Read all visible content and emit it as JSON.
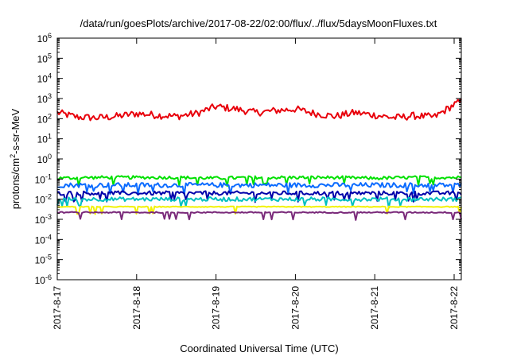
{
  "chart_data": {
    "type": "line",
    "title": "/data/run/goesPlots/archive/2017-08-22/02:00/flux/../flux/5daysMoonFluxes.txt",
    "xlabel": "Coordinated Universal Time (UTC)",
    "ylabel": "protons/cm²-s-sr-MeV",
    "ylabel_parts": {
      "before": "protons/cm",
      "sup": "2",
      "after": "-s-sr-MeV"
    },
    "yscale": "log",
    "ylim_exp": [
      -6,
      6
    ],
    "y_ticks": [
      {
        "base": "10",
        "exp": "6"
      },
      {
        "base": "10",
        "exp": "5"
      },
      {
        "base": "10",
        "exp": "4"
      },
      {
        "base": "10",
        "exp": "3"
      },
      {
        "base": "10",
        "exp": "2"
      },
      {
        "base": "10",
        "exp": "1"
      },
      {
        "base": "10",
        "exp": "0"
      },
      {
        "base": "10",
        "exp": "-1"
      },
      {
        "base": "10",
        "exp": "-2"
      },
      {
        "base": "10",
        "exp": "-3"
      },
      {
        "base": "10",
        "exp": "-4"
      },
      {
        "base": "10",
        "exp": "-5"
      },
      {
        "base": "10",
        "exp": "-6"
      }
    ],
    "x_ticks": [
      "2017-8-17",
      "2017-8-18",
      "2017-8-19",
      "2017-8-20",
      "2017-8-21",
      "2017-8-22"
    ],
    "xlim": [
      "2017-08-17",
      "2017-08-22 02:00"
    ],
    "grid": false,
    "series": [
      {
        "color": "#e8000b",
        "x": [
          0,
          0.25,
          0.5,
          0.75,
          1,
          1.25,
          1.5,
          1.75,
          2,
          2.25,
          2.5,
          2.75,
          3,
          3.25,
          3.5,
          3.75,
          4,
          4.25,
          4.5,
          4.75,
          5,
          5.09
        ],
        "y": [
          200,
          120,
          110,
          130,
          180,
          150,
          130,
          180,
          400,
          300,
          200,
          250,
          300,
          180,
          130,
          200,
          150,
          110,
          140,
          120,
          500,
          700
        ]
      },
      {
        "color": "#00e000",
        "x": [
          0,
          0.5,
          1,
          1.5,
          2,
          2.5,
          3,
          3.5,
          4,
          4.5,
          5,
          5.09
        ],
        "y": [
          0.11,
          0.12,
          0.12,
          0.12,
          0.11,
          0.12,
          0.12,
          0.12,
          0.11,
          0.12,
          0.12,
          0.12
        ]
      },
      {
        "color": "#0a6bff",
        "x": [
          0,
          0.5,
          1,
          1.5,
          2,
          2.5,
          3,
          3.5,
          4,
          4.5,
          5,
          5.09
        ],
        "y": [
          0.05,
          0.05,
          0.05,
          0.05,
          0.05,
          0.05,
          0.05,
          0.05,
          0.05,
          0.05,
          0.05,
          0.05
        ]
      },
      {
        "color": "#0000aa",
        "x": [
          0,
          0.5,
          1,
          1.5,
          2,
          2.5,
          3,
          3.5,
          4,
          4.5,
          5,
          5.09
        ],
        "y": [
          0.02,
          0.02,
          0.02,
          0.02,
          0.02,
          0.02,
          0.02,
          0.02,
          0.02,
          0.02,
          0.02,
          0.02
        ]
      },
      {
        "color": "#00c0c0",
        "x": [
          0,
          0.5,
          1,
          1.5,
          2,
          2.5,
          3,
          3.5,
          4,
          4.5,
          5,
          5.09
        ],
        "y": [
          0.01,
          0.01,
          0.01,
          0.01,
          0.01,
          0.01,
          0.01,
          0.01,
          0.01,
          0.01,
          0.01,
          0.01
        ]
      },
      {
        "color": "#f2f200",
        "x": [
          0,
          0.5,
          1,
          1.5,
          2,
          2.5,
          3,
          3.5,
          4,
          4.5,
          5,
          5.09
        ],
        "y": [
          0.0042,
          0.0042,
          0.0042,
          0.0042,
          0.0042,
          0.0042,
          0.0042,
          0.0042,
          0.0042,
          0.0042,
          0.0042,
          0.0042
        ]
      },
      {
        "color": "#7a2a7a",
        "x": [
          0,
          0.5,
          1,
          1.5,
          2,
          2.5,
          3,
          3.5,
          4,
          4.5,
          5,
          5.09
        ],
        "y": [
          0.0022,
          0.0022,
          0.0022,
          0.0022,
          0.0022,
          0.0022,
          0.0022,
          0.0022,
          0.0022,
          0.0022,
          0.0022,
          0.0022
        ]
      }
    ]
  }
}
